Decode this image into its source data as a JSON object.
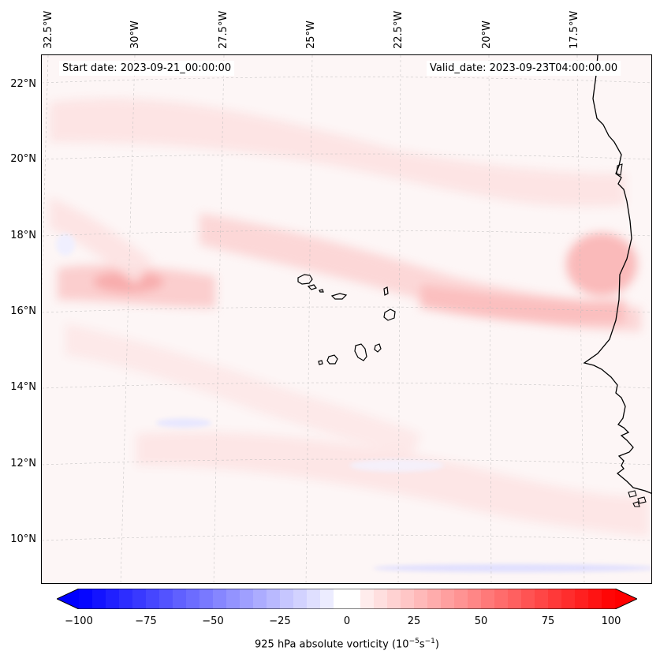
{
  "header": {
    "start_date": "Start date: 2023-09-21_00:00:00",
    "valid_date": "Valid_date: 2023-09-23T04:00:00.00"
  },
  "axes": {
    "longitude_labels": [
      "32.5°W",
      "30°W",
      "27.5°W",
      "25°W",
      "22.5°W",
      "20°W",
      "17.5°W"
    ],
    "latitude_labels": [
      "22°N",
      "20°N",
      "18°N",
      "16°N",
      "14°N",
      "12°N",
      "10°N"
    ]
  },
  "colorbar": {
    "ticks": [
      "−100",
      "−75",
      "−50",
      "−25",
      "0",
      "25",
      "50",
      "75",
      "100"
    ],
    "label": "925 hPa absolute vorticity (10",
    "label_exp1": "−5",
    "label_mid": "s",
    "label_exp2": "−1",
    "label_end": ")",
    "min": -100,
    "max": 100,
    "negative_color": "#0000ff",
    "positive_color": "#ff0000"
  },
  "map": {
    "variable": "925 hPa absolute vorticity",
    "features": [
      "cape-verde-islands",
      "west-african-coastline"
    ]
  }
}
